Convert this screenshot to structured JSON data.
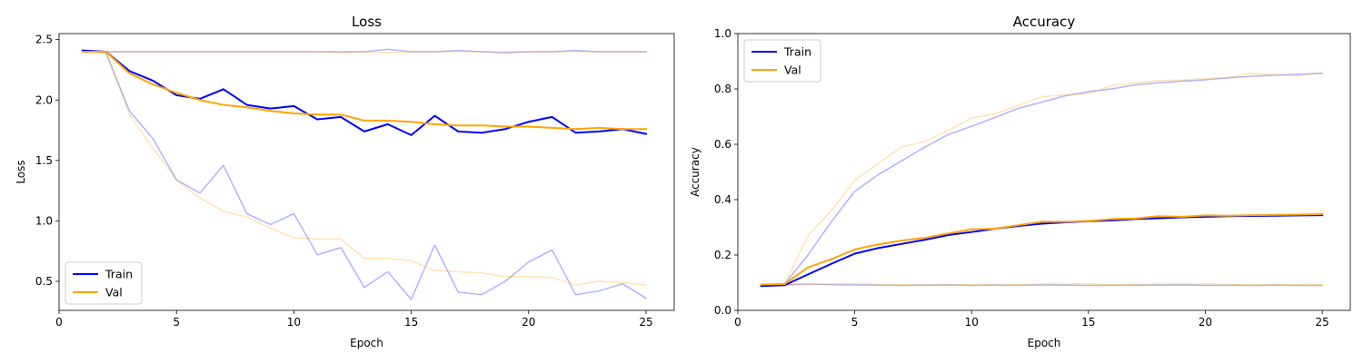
{
  "chart_data": [
    {
      "type": "line",
      "title": "Loss",
      "xlabel": "Epoch",
      "ylabel": "Loss",
      "xlim": [
        0,
        26.2
      ],
      "ylim": [
        0.26,
        2.55
      ],
      "xticks": [
        0,
        5,
        10,
        15,
        20,
        25
      ],
      "yticks": [
        0.5,
        1.0,
        1.5,
        2.0,
        2.5
      ],
      "ytick_labels": [
        "0.5",
        "1.0",
        "1.5",
        "2.0",
        "2.5"
      ],
      "legend_position": "lower-left",
      "legend": [
        {
          "label": "Train",
          "color": "#0000ff"
        },
        {
          "label": "Val",
          "color": "#ffa500"
        }
      ],
      "x": [
        1,
        2,
        3,
        4,
        5,
        6,
        7,
        8,
        9,
        10,
        11,
        12,
        13,
        14,
        15,
        16,
        17,
        18,
        19,
        20,
        21,
        22,
        23,
        24,
        25
      ],
      "series": [
        {
          "color": "#0000ff",
          "opacity": 0.3,
          "width": 1.5,
          "values": [
            2.41,
            2.4,
            2.4,
            2.4,
            2.4,
            2.4,
            2.4,
            2.4,
            2.4,
            2.4,
            2.4,
            2.4,
            2.4,
            2.42,
            2.4,
            2.4,
            2.41,
            2.4,
            2.39,
            2.4,
            2.4,
            2.41,
            2.4,
            2.4,
            2.4
          ]
        },
        {
          "color": "#ffa500",
          "opacity": 0.3,
          "width": 1.5,
          "values": [
            2.4,
            2.4,
            2.4,
            2.4,
            2.4,
            2.4,
            2.4,
            2.4,
            2.4,
            2.4,
            2.4,
            2.39,
            2.4,
            2.39,
            2.4,
            2.4,
            2.4,
            2.4,
            2.4,
            2.4,
            2.4,
            2.4,
            2.4,
            2.4,
            2.4
          ]
        },
        {
          "color": "#0000ff",
          "opacity": 0.3,
          "width": 1.5,
          "values": [
            2.41,
            2.39,
            1.91,
            1.68,
            1.34,
            1.23,
            1.46,
            1.06,
            0.97,
            1.06,
            0.72,
            0.78,
            0.45,
            0.58,
            0.35,
            0.8,
            0.41,
            0.39,
            0.5,
            0.66,
            0.76,
            0.39,
            0.42,
            0.48,
            0.36
          ]
        },
        {
          "color": "#ffa500",
          "opacity": 0.3,
          "width": 1.5,
          "values": [
            2.4,
            2.39,
            1.88,
            1.6,
            1.34,
            1.19,
            1.08,
            1.03,
            0.94,
            0.86,
            0.85,
            0.85,
            0.69,
            0.69,
            0.67,
            0.59,
            0.58,
            0.57,
            0.54,
            0.54,
            0.53,
            0.47,
            0.5,
            0.49,
            0.47
          ]
        },
        {
          "color": "#0000ff",
          "opacity": 1,
          "width": 2,
          "values": [
            2.41,
            2.4,
            2.24,
            2.16,
            2.04,
            2.01,
            2.09,
            1.96,
            1.93,
            1.95,
            1.84,
            1.86,
            1.74,
            1.8,
            1.71,
            1.87,
            1.74,
            1.73,
            1.76,
            1.82,
            1.86,
            1.73,
            1.74,
            1.76,
            1.72
          ]
        },
        {
          "color": "#ffa500",
          "opacity": 1,
          "width": 2,
          "values": [
            2.4,
            2.4,
            2.22,
            2.13,
            2.06,
            2.0,
            1.96,
            1.94,
            1.91,
            1.89,
            1.88,
            1.88,
            1.83,
            1.83,
            1.82,
            1.8,
            1.79,
            1.79,
            1.78,
            1.78,
            1.77,
            1.76,
            1.77,
            1.76,
            1.76
          ]
        }
      ]
    },
    {
      "type": "line",
      "title": "Accuracy",
      "xlabel": "Epoch",
      "ylabel": "Accuracy",
      "xlim": [
        0,
        26.2
      ],
      "ylim": [
        0,
        1.0
      ],
      "xticks": [
        0,
        5,
        10,
        15,
        20,
        25
      ],
      "yticks": [
        0.0,
        0.2,
        0.4,
        0.6,
        0.8,
        1.0
      ],
      "ytick_labels": [
        "0.0",
        "0.2",
        "0.4",
        "0.6",
        "0.8",
        "1.0"
      ],
      "legend_position": "upper-left",
      "legend": [
        {
          "label": "Train",
          "color": "#0000ff"
        },
        {
          "label": "Val",
          "color": "#ffa500"
        }
      ],
      "x": [
        1,
        2,
        3,
        4,
        5,
        6,
        7,
        8,
        9,
        10,
        11,
        12,
        13,
        14,
        15,
        16,
        17,
        18,
        19,
        20,
        21,
        22,
        23,
        24,
        25
      ],
      "series": [
        {
          "color": "#0000ff",
          "opacity": 0.3,
          "width": 1.5,
          "values": [
            0.088,
            0.092,
            0.095,
            0.093,
            0.092,
            0.091,
            0.09,
            0.091,
            0.092,
            0.09,
            0.091,
            0.09,
            0.092,
            0.091,
            0.09,
            0.09,
            0.091,
            0.091,
            0.092,
            0.09,
            0.091,
            0.09,
            0.091,
            0.09,
            0.09
          ]
        },
        {
          "color": "#ffa500",
          "opacity": 0.3,
          "width": 1.5,
          "values": [
            0.095,
            0.096,
            0.094,
            0.095,
            0.097,
            0.095,
            0.093,
            0.092,
            0.094,
            0.093,
            0.095,
            0.094,
            0.095,
            0.096,
            0.095,
            0.094,
            0.094,
            0.096,
            0.095,
            0.096,
            0.094,
            0.092,
            0.094,
            0.093,
            0.094
          ]
        },
        {
          "color": "#0000ff",
          "opacity": 0.3,
          "width": 1.5,
          "values": [
            0.088,
            0.095,
            0.2,
            0.32,
            0.43,
            0.49,
            0.54,
            0.59,
            0.635,
            0.665,
            0.697,
            0.73,
            0.752,
            0.775,
            0.79,
            0.8,
            0.815,
            0.822,
            0.828,
            0.833,
            0.84,
            0.846,
            0.85,
            0.853,
            0.857
          ]
        },
        {
          "color": "#ffa500",
          "opacity": 0.3,
          "width": 1.5,
          "values": [
            0.092,
            0.094,
            0.27,
            0.36,
            0.47,
            0.53,
            0.59,
            0.61,
            0.65,
            0.695,
            0.71,
            0.74,
            0.772,
            0.778,
            0.783,
            0.812,
            0.822,
            0.83,
            0.832,
            0.837,
            0.842,
            0.857,
            0.85,
            0.847,
            0.857
          ]
        },
        {
          "color": "#0000ff",
          "opacity": 1,
          "width": 2,
          "values": [
            0.088,
            0.091,
            0.13,
            0.168,
            0.205,
            0.225,
            0.24,
            0.255,
            0.272,
            0.283,
            0.295,
            0.305,
            0.313,
            0.318,
            0.322,
            0.325,
            0.33,
            0.333,
            0.336,
            0.338,
            0.34,
            0.341,
            0.342,
            0.343,
            0.344
          ]
        },
        {
          "color": "#ffa500",
          "opacity": 1,
          "width": 2,
          "values": [
            0.093,
            0.095,
            0.155,
            0.185,
            0.22,
            0.238,
            0.252,
            0.262,
            0.278,
            0.293,
            0.295,
            0.308,
            0.32,
            0.32,
            0.323,
            0.33,
            0.332,
            0.34,
            0.338,
            0.343,
            0.342,
            0.344,
            0.345,
            0.346,
            0.348
          ]
        }
      ]
    }
  ]
}
